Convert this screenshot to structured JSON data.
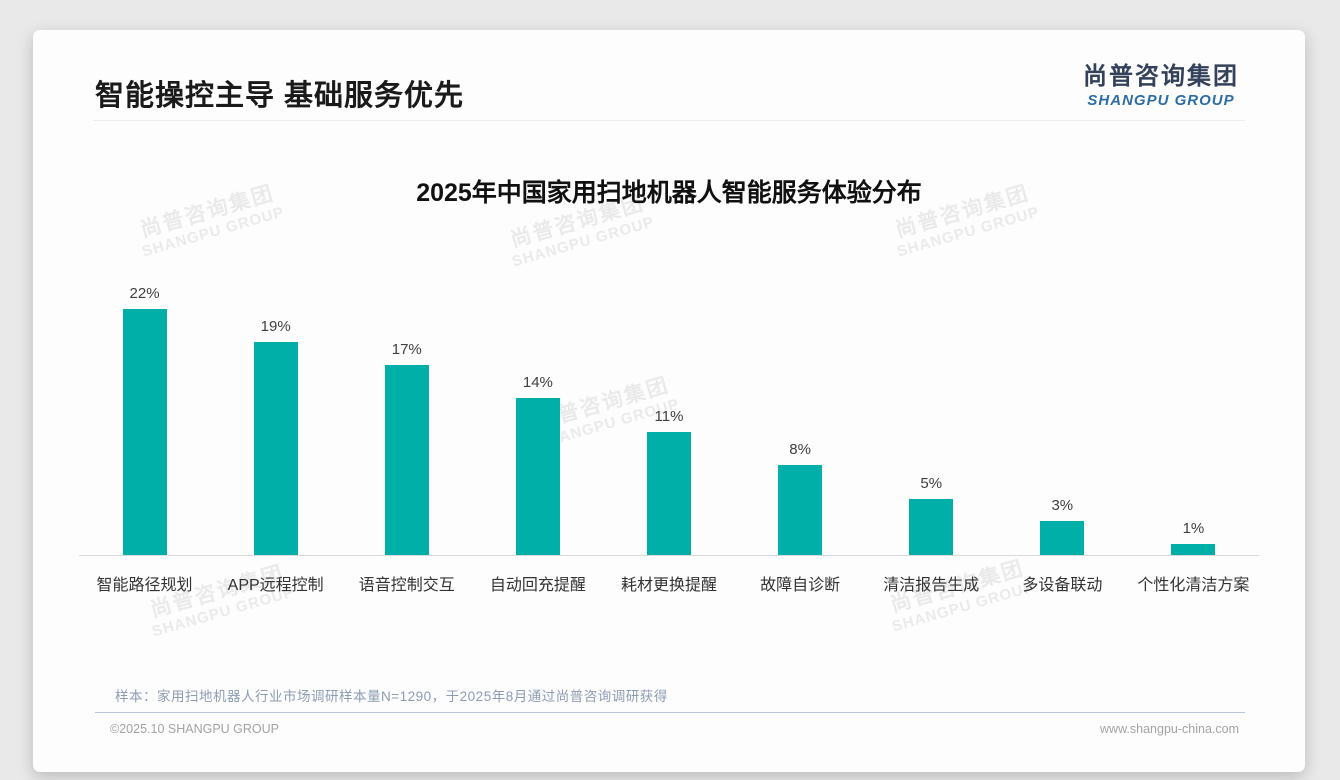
{
  "page": {
    "slide_title": "智能操控主导 基础服务优先",
    "logo": {
      "cn": "尚普咨询集团",
      "en": "SHANGPU GROUP"
    },
    "watermark": {
      "cn": "尚普咨询集团",
      "en": "SHANGPU GROUP"
    },
    "footnote": "样本：家用扫地机器人行业市场调研样本量N=1290，于2025年8月通过尚普咨询调研获得",
    "footer_left": "©2025.10 SHANGPU GROUP",
    "footer_right": "www.shangpu-china.com"
  },
  "colors": {
    "bar": "#00AFA8",
    "logo_cn": "#34415A",
    "logo_en": "#2E6DA4",
    "footnote": "#8E9CB3",
    "footer_divider": "#B7C5D9"
  },
  "chart_data": {
    "type": "bar",
    "title": "2025年中国家用扫地机器人智能服务体验分布",
    "categories": [
      "智能路径规划",
      "APP远程控制",
      "语音控制交互",
      "自动回充提醒",
      "耗材更换提醒",
      "故障自诊断",
      "清洁报告生成",
      "多设备联动",
      "个性化清洁方案"
    ],
    "values": [
      22,
      19,
      17,
      14,
      11,
      8,
      5,
      3,
      1
    ],
    "unit": "%",
    "value_labels": [
      "22%",
      "19%",
      "17%",
      "14%",
      "11%",
      "8%",
      "5%",
      "3%",
      "1%"
    ],
    "xlabel": "",
    "ylabel": "",
    "ylim": [
      0,
      24
    ],
    "grid": false,
    "legend": false,
    "bar_color": "#00AFA8"
  }
}
